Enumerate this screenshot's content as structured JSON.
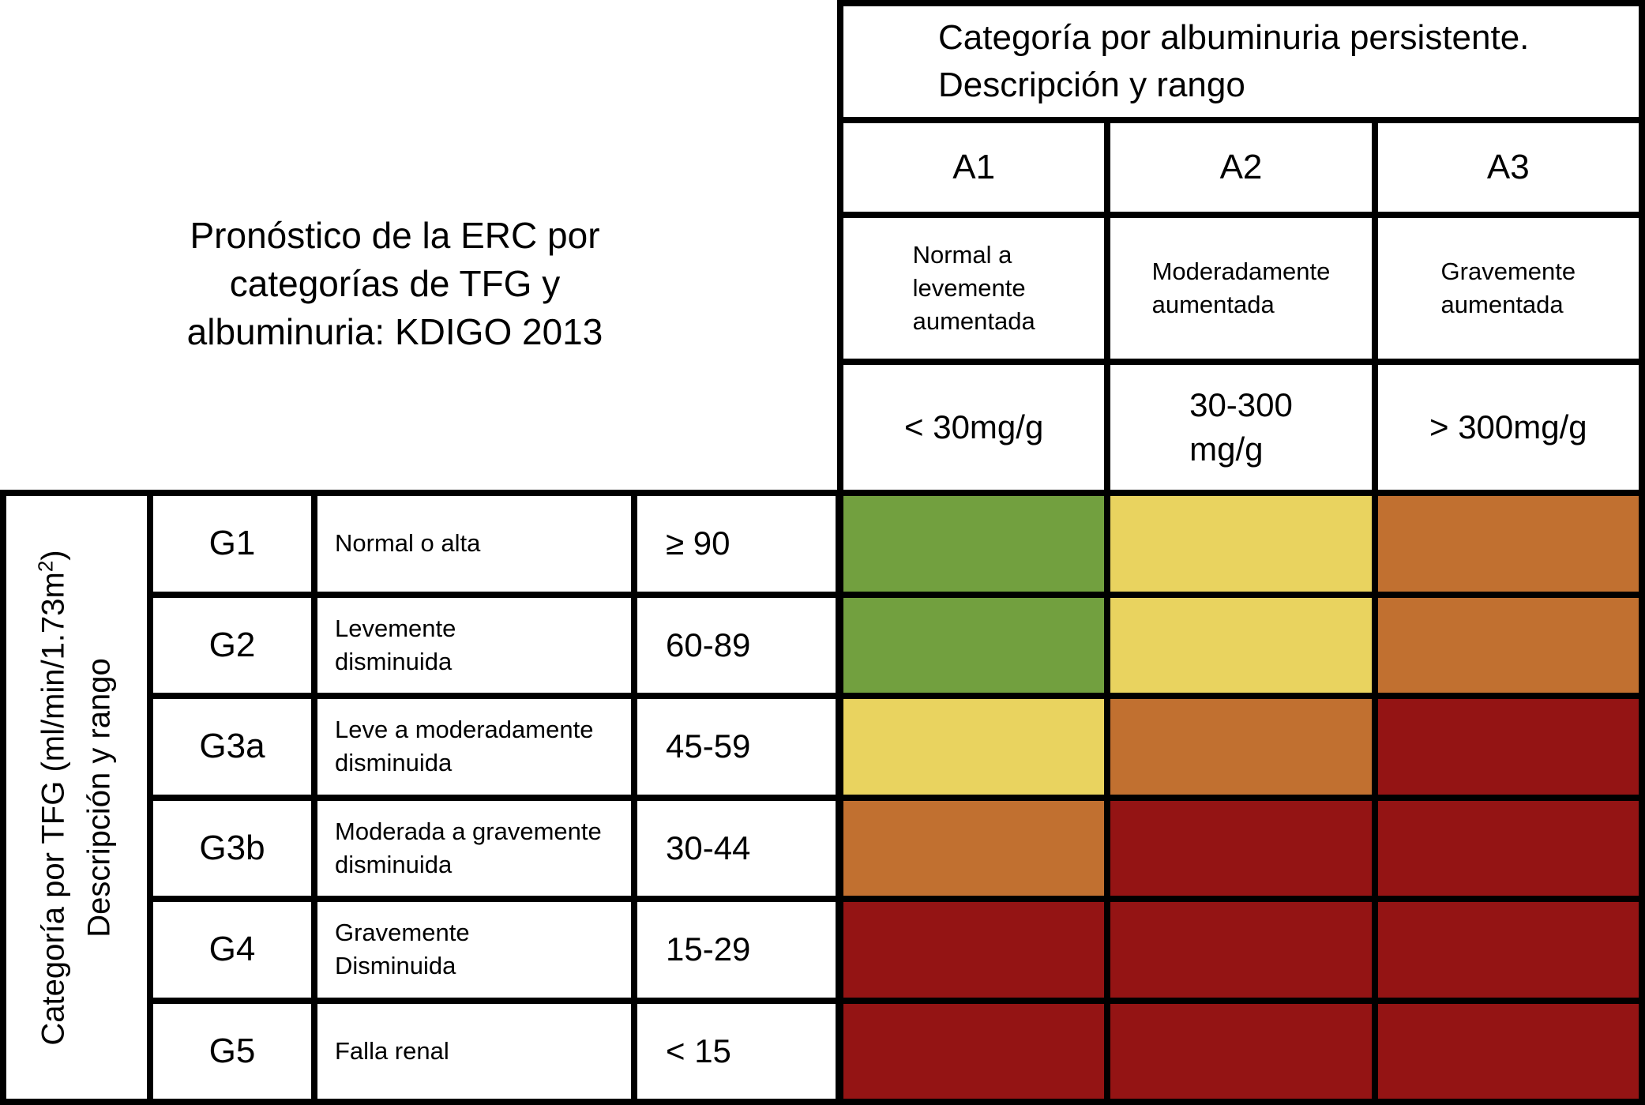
{
  "colors": {
    "green": "#72a03f",
    "yellow": "#e9d35f",
    "orange": "#c17030",
    "red": "#941414",
    "grid_line": "#000000",
    "background": "#ffffff",
    "text": "#000000"
  },
  "title": "Pronóstico de la ERC por\ncategorías de TFG y\nalbuminuria: KDIGO 2013",
  "chart_data": {
    "type": "heatmap",
    "title": "Pronóstico de la ERC por categorías de TFG y albuminuria: KDIGO 2013",
    "x_axis": {
      "banner": "Categoría por albuminuria persistente.\nDescripción y rango",
      "categories": [
        {
          "code": "A1",
          "description": "Normal a\nlevemente\naumentada",
          "range": "< 30mg/g"
        },
        {
          "code": "A2",
          "description": "Moderadamente\naumentada",
          "range": "30-300\nmg/g"
        },
        {
          "code": "A3",
          "description": "Gravemente\naumentada",
          "range": "> 300mg/g"
        }
      ]
    },
    "y_axis": {
      "banner_main": "Categoría por TFG (ml/min/1.73m",
      "banner_sup": "2",
      "banner_close": ")",
      "banner_line2": "Descripción y rango",
      "categories": [
        {
          "code": "G1",
          "description": "Normal o alta",
          "range": "≥ 90"
        },
        {
          "code": "G2",
          "description": "Levemente\ndisminuida",
          "range": "60-89"
        },
        {
          "code": "G3a",
          "description": "Leve a moderadamente\ndisminuida",
          "range": "45-59"
        },
        {
          "code": "G3b",
          "description": "Moderada a gravemente\ndisminuida",
          "range": "30-44"
        },
        {
          "code": "G4",
          "description": "Gravemente\nDisminuida",
          "range": "15-29"
        },
        {
          "code": "G5",
          "description": "Falla renal",
          "range": "< 15"
        }
      ]
    },
    "cells": [
      [
        "green",
        "yellow",
        "orange"
      ],
      [
        "green",
        "yellow",
        "orange"
      ],
      [
        "yellow",
        "orange",
        "red"
      ],
      [
        "orange",
        "red",
        "red"
      ],
      [
        "red",
        "red",
        "red"
      ],
      [
        "red",
        "red",
        "red"
      ]
    ]
  }
}
